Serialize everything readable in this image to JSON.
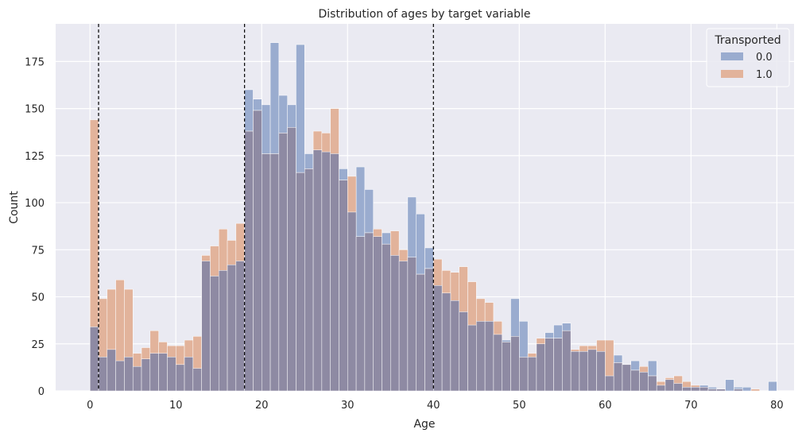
{
  "chart_data": {
    "type": "bar",
    "title": "Distribution of ages by target variable",
    "xlabel": "Age",
    "ylabel": "Count",
    "xlim": [
      -4,
      82
    ],
    "ylim": [
      0,
      195
    ],
    "xticks": [
      0,
      10,
      20,
      30,
      40,
      50,
      60,
      70,
      80
    ],
    "yticks": [
      0,
      25,
      50,
      75,
      100,
      125,
      150,
      175
    ],
    "grid": true,
    "bin_width": 1,
    "bins_start": [
      0,
      1,
      2,
      3,
      4,
      5,
      6,
      7,
      8,
      9,
      10,
      11,
      12,
      13,
      14,
      15,
      16,
      17,
      18,
      19,
      20,
      21,
      22,
      23,
      24,
      25,
      26,
      27,
      28,
      29,
      30,
      31,
      32,
      33,
      34,
      35,
      36,
      37,
      38,
      39,
      40,
      41,
      42,
      43,
      44,
      45,
      46,
      47,
      48,
      49,
      50,
      51,
      52,
      53,
      54,
      55,
      56,
      57,
      58,
      59,
      60,
      61,
      62,
      63,
      64,
      65,
      66,
      67,
      68,
      69,
      70,
      71,
      72,
      73,
      74,
      75,
      76,
      77,
      78,
      79
    ],
    "series": [
      {
        "name": "0.0",
        "color": "#4c72b0",
        "values": [
          34,
          18,
          22,
          16,
          18,
          13,
          17,
          20,
          20,
          18,
          14,
          18,
          12,
          69,
          61,
          64,
          67,
          69,
          160,
          155,
          152,
          185,
          157,
          152,
          184,
          126,
          128,
          127,
          126,
          118,
          95,
          119,
          107,
          82,
          84,
          72,
          69,
          103,
          94,
          76,
          56,
          52,
          48,
          42,
          35,
          37,
          37,
          30,
          27,
          49,
          37,
          18,
          25,
          31,
          35,
          36,
          21,
          21,
          22,
          21,
          8,
          19,
          14,
          16,
          10,
          16,
          3,
          6,
          4,
          2,
          2,
          3,
          2,
          1,
          6,
          2,
          2,
          0,
          0,
          5
        ]
      },
      {
        "name": "1.0",
        "color": "#dd8452",
        "values": [
          144,
          49,
          54,
          59,
          54,
          20,
          23,
          32,
          26,
          24,
          24,
          27,
          29,
          72,
          77,
          86,
          80,
          89,
          138,
          149,
          126,
          126,
          137,
          140,
          116,
          118,
          138,
          137,
          150,
          112,
          114,
          82,
          84,
          86,
          78,
          85,
          75,
          71,
          62,
          65,
          70,
          64,
          63,
          66,
          58,
          49,
          47,
          37,
          26,
          29,
          18,
          20,
          28,
          28,
          28,
          32,
          22,
          24,
          24,
          27,
          27,
          15,
          14,
          11,
          13,
          8,
          5,
          7,
          8,
          5,
          3,
          2,
          1,
          1,
          0,
          1,
          0,
          1,
          0,
          0
        ]
      }
    ],
    "overlap_color": "#8e8aa3",
    "vlines": [
      1,
      18,
      40
    ],
    "legend": {
      "title": "Transported",
      "position": "top-right",
      "entries": [
        "0.0",
        "1.0"
      ]
    }
  }
}
